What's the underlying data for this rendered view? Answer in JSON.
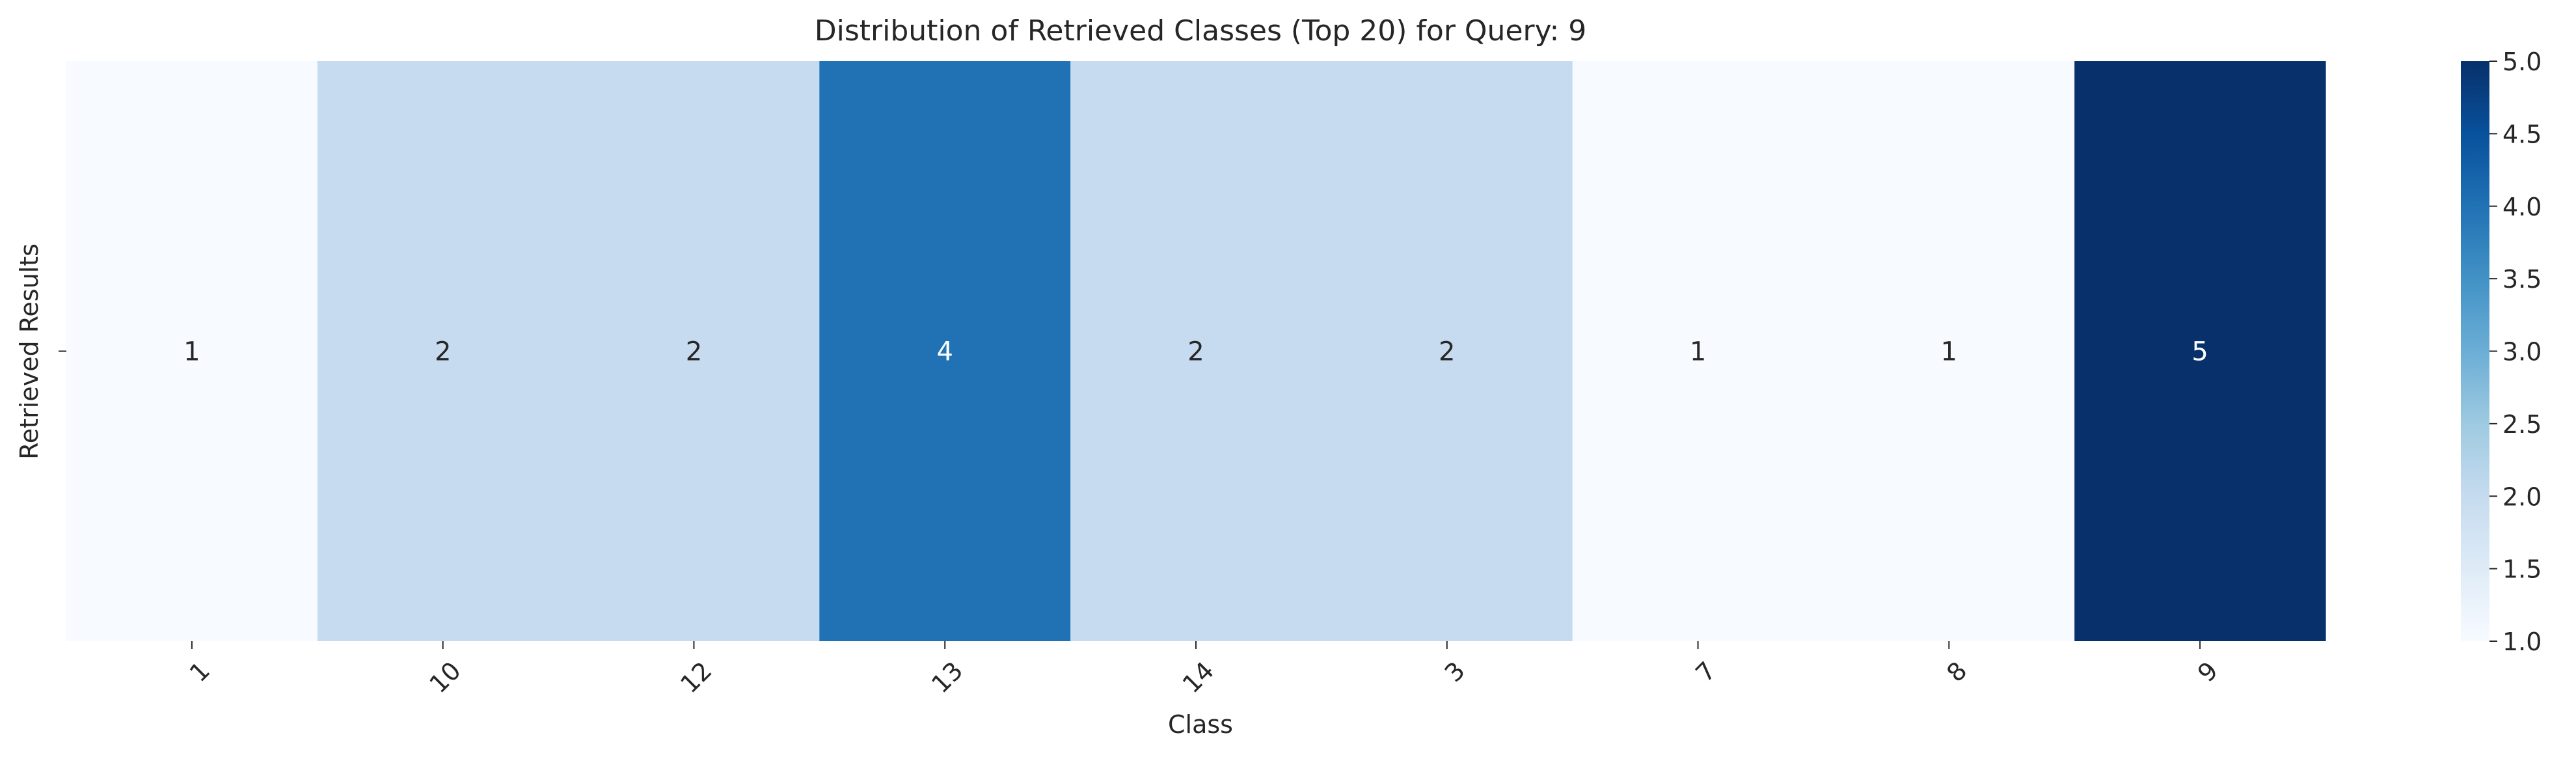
{
  "chart_data": {
    "type": "heatmap",
    "title": "Distribution of Retrieved Classes (Top 20) for Query: 9",
    "xlabel": "Class",
    "ylabel": "Retrieved Results",
    "categories": [
      "1",
      "10",
      "12",
      "13",
      "14",
      "3",
      "7",
      "8",
      "9"
    ],
    "values": [
      1,
      2,
      2,
      4,
      2,
      2,
      1,
      1,
      5
    ],
    "rows": [
      ""
    ],
    "colorbar": {
      "min": 1.0,
      "max": 5.0,
      "ticks": [
        "1.0",
        "1.5",
        "2.0",
        "2.5",
        "3.0",
        "3.5",
        "4.0",
        "4.5",
        "5.0"
      ],
      "colormap": "Blues"
    },
    "grid": false
  }
}
